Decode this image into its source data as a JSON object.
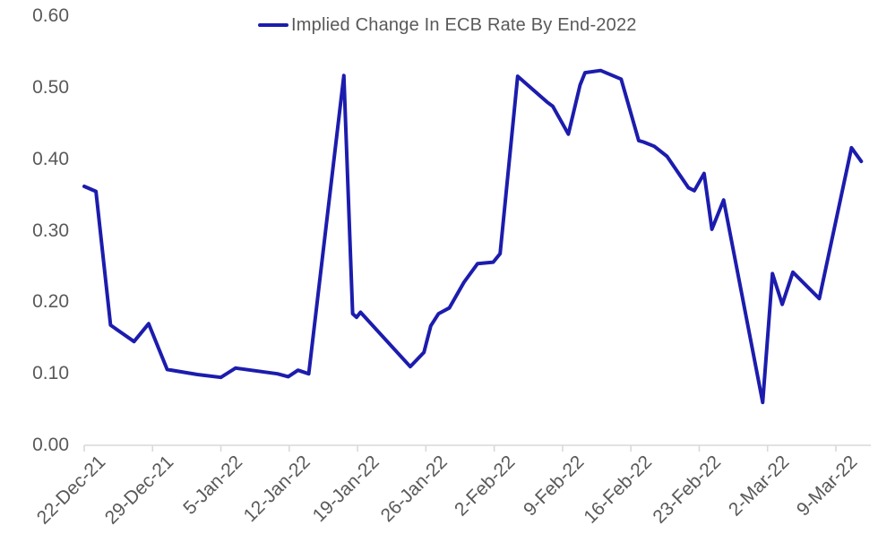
{
  "chart_data": {
    "type": "line",
    "title": "",
    "legend": "Implied Change In ECB Rate By End-2022",
    "legend_position": "top-center",
    "x_unit": "days since 22-Dec-21",
    "xlabel": "",
    "ylabel": "",
    "ylim": [
      0.0,
      0.6
    ],
    "grid": false,
    "colors": {
      "line": "#1c1cae",
      "axis": "#d9d9d9",
      "labels": "#595959",
      "background": "#ffffff"
    },
    "y_ticks": [
      {
        "v": 0.0,
        "label": "0.00"
      },
      {
        "v": 0.1,
        "label": "0.10"
      },
      {
        "v": 0.2,
        "label": "0.20"
      },
      {
        "v": 0.3,
        "label": "0.30"
      },
      {
        "v": 0.4,
        "label": "0.40"
      },
      {
        "v": 0.5,
        "label": "0.50"
      },
      {
        "v": 0.6,
        "label": "0.60"
      }
    ],
    "x_ticks": [
      {
        "day": 0,
        "label": "22-Dec-21"
      },
      {
        "day": 7,
        "label": "29-Dec-21"
      },
      {
        "day": 14,
        "label": "5-Jan-22"
      },
      {
        "day": 21,
        "label": "12-Jan-22"
      },
      {
        "day": 28,
        "label": "19-Jan-22"
      },
      {
        "day": 35,
        "label": "26-Jan-22"
      },
      {
        "day": 42,
        "label": "2-Feb-22"
      },
      {
        "day": 49,
        "label": "9-Feb-22"
      },
      {
        "day": 56,
        "label": "16-Feb-22"
      },
      {
        "day": 63,
        "label": "23-Feb-22"
      },
      {
        "day": 70,
        "label": "2-Mar-22"
      },
      {
        "day": 77,
        "label": "9-Mar-22"
      }
    ],
    "series": [
      {
        "name": "Implied Change In ECB Rate By End-2022",
        "color": "#1c1cae",
        "points": [
          [
            0.0,
            0.362
          ],
          [
            1.2,
            0.355
          ],
          [
            2.7,
            0.168
          ],
          [
            5.1,
            0.145
          ],
          [
            6.6,
            0.17
          ],
          [
            8.5,
            0.106
          ],
          [
            11.6,
            0.099
          ],
          [
            14.0,
            0.095
          ],
          [
            15.5,
            0.108
          ],
          [
            19.8,
            0.1
          ],
          [
            20.9,
            0.096
          ],
          [
            21.9,
            0.105
          ],
          [
            23.0,
            0.1
          ],
          [
            26.6,
            0.517
          ],
          [
            27.5,
            0.184
          ],
          [
            27.9,
            0.179
          ],
          [
            28.3,
            0.186
          ],
          [
            33.4,
            0.11
          ],
          [
            34.8,
            0.13
          ],
          [
            35.5,
            0.167
          ],
          [
            36.3,
            0.184
          ],
          [
            37.4,
            0.192
          ],
          [
            38.9,
            0.228
          ],
          [
            40.3,
            0.254
          ],
          [
            41.9,
            0.256
          ],
          [
            42.6,
            0.268
          ],
          [
            44.4,
            0.516
          ],
          [
            47.4,
            0.48
          ],
          [
            48.0,
            0.474
          ],
          [
            49.6,
            0.435
          ],
          [
            50.8,
            0.504
          ],
          [
            51.3,
            0.521
          ],
          [
            52.9,
            0.524
          ],
          [
            55.0,
            0.512
          ],
          [
            56.8,
            0.426
          ],
          [
            57.3,
            0.424
          ],
          [
            58.4,
            0.418
          ],
          [
            59.7,
            0.404
          ],
          [
            61.9,
            0.36
          ],
          [
            62.5,
            0.356
          ],
          [
            63.5,
            0.38
          ],
          [
            64.3,
            0.302
          ],
          [
            65.5,
            0.343
          ],
          [
            69.5,
            0.06
          ],
          [
            70.5,
            0.24
          ],
          [
            71.5,
            0.197
          ],
          [
            72.6,
            0.242
          ],
          [
            75.3,
            0.205
          ],
          [
            78.6,
            0.416
          ],
          [
            79.6,
            0.397
          ]
        ]
      }
    ]
  }
}
